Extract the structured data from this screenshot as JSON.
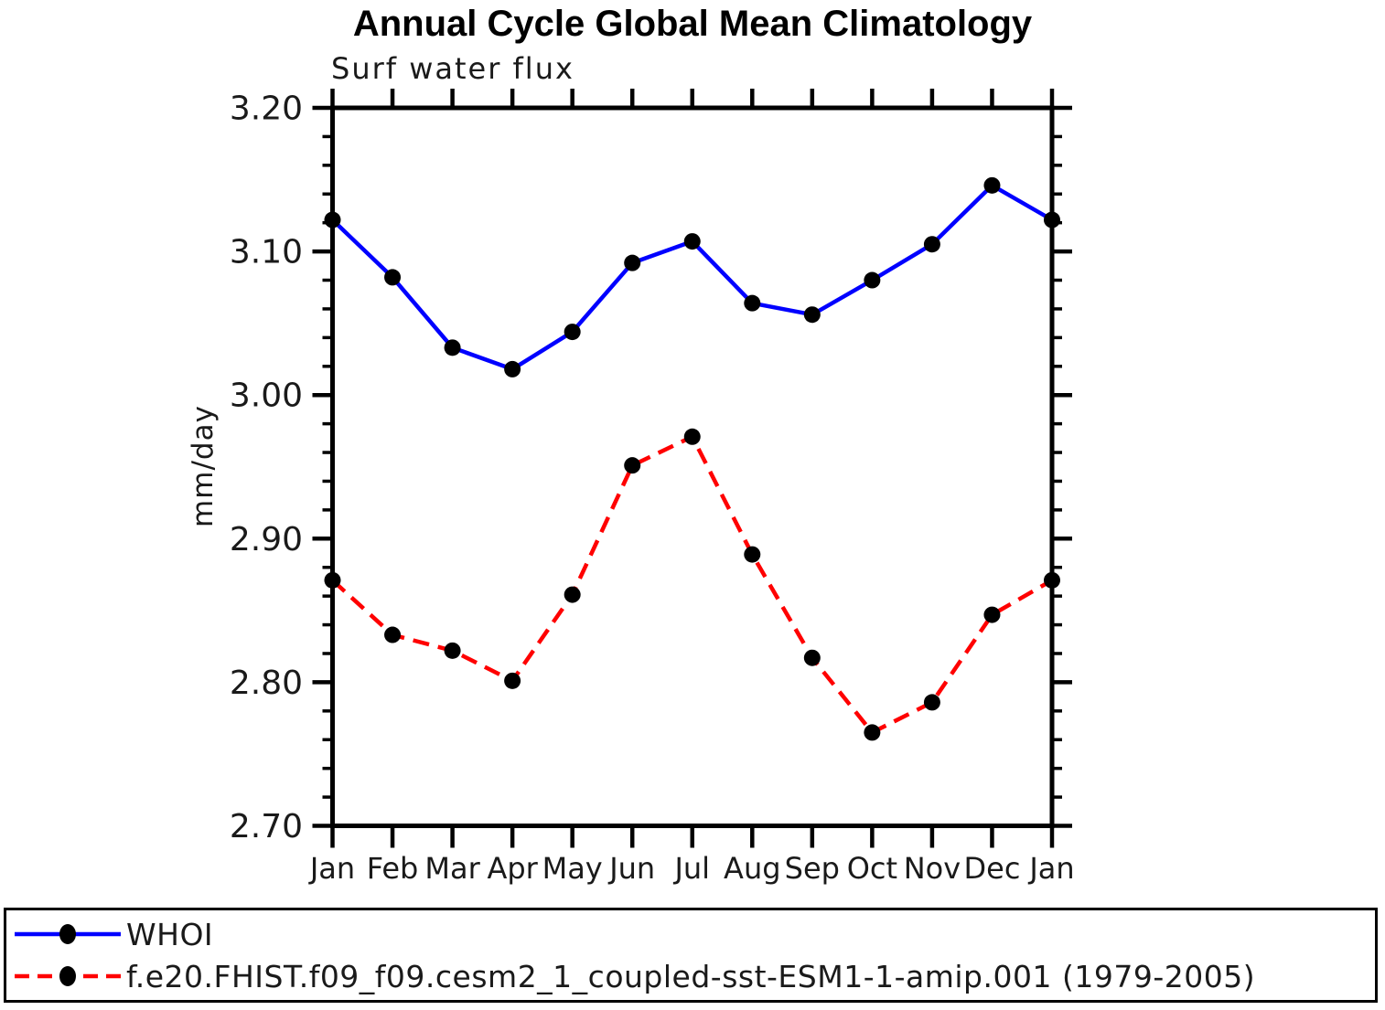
{
  "chart_data": {
    "type": "line",
    "title": "Annual Cycle Global Mean Climatology",
    "subtitle": "Surf water flux",
    "xlabel": "",
    "ylabel": "mm/day",
    "categories": [
      "Jan",
      "Feb",
      "Mar",
      "Apr",
      "May",
      "Jun",
      "Jul",
      "Aug",
      "Sep",
      "Oct",
      "Nov",
      "Dec",
      "Jan"
    ],
    "series": [
      {
        "name": "WHOI",
        "color": "#0000ff",
        "line_style": "solid",
        "marker": "circle",
        "marker_color": "#000000",
        "values": [
          3.122,
          3.082,
          3.033,
          3.018,
          3.044,
          3.092,
          3.107,
          3.064,
          3.056,
          3.08,
          3.105,
          3.146,
          3.122
        ]
      },
      {
        "name": "f.e20.FHIST.f09_f09.cesm2_1_coupled-sst-ESM1-1-amip.001 (1979-2005)",
        "color": "#ff0000",
        "line_style": "dashed",
        "marker": "circle",
        "marker_color": "#000000",
        "values": [
          2.871,
          2.833,
          2.822,
          2.801,
          2.861,
          2.951,
          2.971,
          2.889,
          2.817,
          2.765,
          2.786,
          2.847,
          2.871
        ]
      }
    ],
    "ylim": [
      2.7,
      3.2
    ],
    "ytick_labels": [
      "3.20",
      "3.10",
      "3.00",
      "2.90",
      "2.80",
      "2.70"
    ],
    "ytick_major_step": 0.1,
    "ytick_minor_step": 0.02,
    "grid": false,
    "legend_position": "bottom-box",
    "axis_color": "#000000"
  }
}
